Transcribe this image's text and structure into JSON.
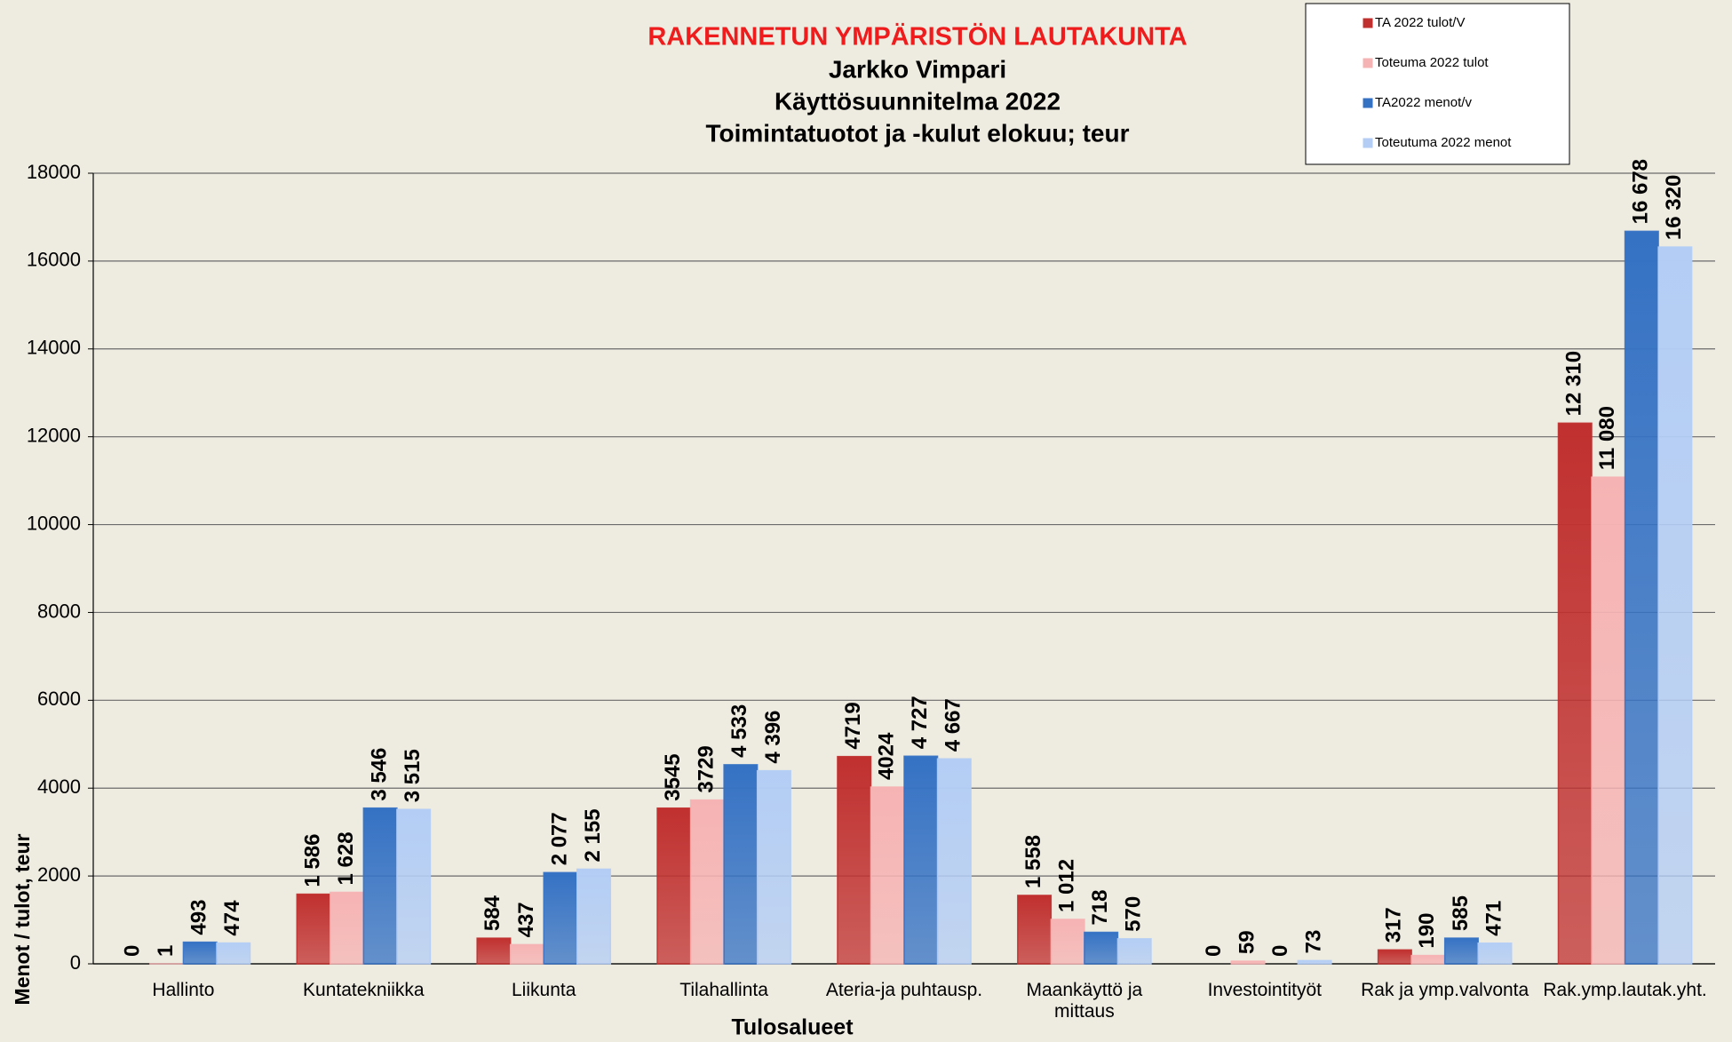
{
  "chart_data": {
    "type": "bar",
    "title": "RAKENNETUN YMPÄRISTÖN LAUTAKUNTA",
    "subtitle": [
      "Jarkko Vimpari",
      "Käyttösuunnitelma 2022",
      "Toimintatuotot ja -kulut elokuu; teur"
    ],
    "x_label": "Tulosalueet",
    "y_label": "Menot / tulot, teur",
    "categories": [
      "Hallinto",
      "Kuntatekniikka",
      "Liikunta",
      "Tilahallinta",
      "Ateria-ja puhtausp.",
      "Maankäyttö ja mittaus",
      "Investointityöt",
      "Rak ja ymp.valvonta",
      "Rak.ymp.lautak.yht."
    ],
    "series": [
      {
        "name": "TA 2022 tulot/V",
        "color": "#c0302f",
        "values": [
          0,
          1586,
          584,
          3545,
          4719,
          1558,
          0,
          317,
          12310
        ],
        "value_labels": [
          "0",
          "1 586",
          "584",
          "3545",
          "4719",
          "1 558",
          "0",
          "317",
          "12 310"
        ]
      },
      {
        "name": "Toteuma 2022 tulot",
        "color": "#f6b3b3",
        "values": [
          1,
          1628,
          437,
          3729,
          4024,
          1012,
          59,
          190,
          11080
        ],
        "value_labels": [
          "1",
          "1 628",
          "437",
          "3729",
          "4024",
          "1 012",
          "59",
          "190",
          "11 080"
        ]
      },
      {
        "name": "TA2022 menot/v",
        "color": "#3572c4",
        "values": [
          493,
          3546,
          2077,
          4533,
          4727,
          718,
          0,
          585,
          16678
        ],
        "value_labels": [
          "493",
          "3 546",
          "2 077",
          "4 533",
          "4 727",
          "718",
          "0",
          "585",
          "16 678"
        ]
      },
      {
        "name": "Toteutuma 2022 menot",
        "color": "#b3cdf5",
        "values": [
          474,
          3515,
          2155,
          4396,
          4667,
          570,
          73,
          471,
          16320
        ],
        "value_labels": [
          "474",
          "3 515",
          "2 155",
          "4 396",
          "4 667",
          "570",
          "73",
          "471",
          "16 320"
        ]
      }
    ],
    "ylim": [
      0,
      18000
    ],
    "yticks": [
      0,
      2000,
      4000,
      6000,
      8000,
      10000,
      12000,
      14000,
      16000,
      18000
    ],
    "grid": true,
    "legend": "top-right"
  }
}
